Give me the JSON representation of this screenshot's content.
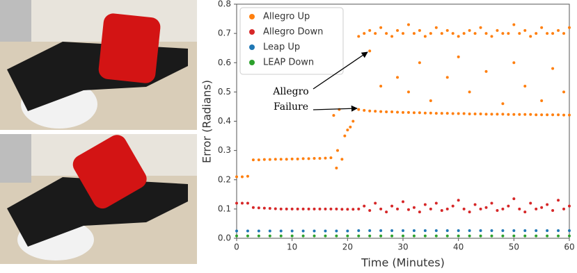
{
  "chart_data": {
    "type": "scatter",
    "xlabel": "Time (Minutes)",
    "ylabel": "Error (Radians)",
    "annotation": [
      "Allegro",
      "Failure"
    ],
    "xlim": [
      0,
      60
    ],
    "ylim": [
      0,
      0.8
    ],
    "xticks": [
      0,
      10,
      20,
      30,
      40,
      50,
      60
    ],
    "yticks": [
      {
        "value": 0,
        "label": "0.0"
      },
      0.1,
      0.2,
      0.3,
      0.4,
      0.5,
      0.6,
      0.7,
      0.8
    ],
    "legend": "upper-left",
    "series": [
      {
        "name": "Allegro Up",
        "color": "#ff7f0e",
        "x": [
          0,
          1,
          2,
          3,
          4,
          5,
          6,
          7,
          8,
          9,
          10,
          11,
          12,
          13,
          14,
          15,
          16,
          17,
          18,
          19,
          20,
          21,
          22,
          23,
          24,
          25,
          26,
          27,
          28,
          29,
          30,
          31,
          32,
          33,
          34,
          35,
          36,
          37,
          38,
          39,
          40,
          41,
          42,
          43,
          44,
          45,
          46,
          47,
          48,
          49,
          50,
          51,
          52,
          53,
          54,
          55,
          56,
          57,
          58,
          59,
          60,
          17.5,
          18.2,
          18.5,
          19.5,
          20.5,
          22,
          23,
          24,
          25,
          26,
          27,
          28,
          29,
          30,
          31,
          32,
          33,
          34,
          35,
          36,
          37,
          38,
          39,
          40,
          41,
          42,
          43,
          44,
          45,
          46,
          47,
          48,
          49,
          50,
          51,
          52,
          53,
          54,
          55,
          56,
          57,
          58,
          59,
          60,
          24,
          26,
          29,
          31,
          33,
          35,
          38,
          40,
          42,
          45,
          48,
          50,
          52,
          55,
          57,
          59
        ],
        "values": [
          0.21,
          0.21,
          0.212,
          0.268,
          0.268,
          0.269,
          0.269,
          0.27,
          0.27,
          0.27,
          0.271,
          0.271,
          0.272,
          0.272,
          0.273,
          0.273,
          0.274,
          0.275,
          0.24,
          0.27,
          0.37,
          0.4,
          0.44,
          0.437,
          0.435,
          0.434,
          0.433,
          0.432,
          0.432,
          0.431,
          0.43,
          0.43,
          0.429,
          0.429,
          0.428,
          0.428,
          0.427,
          0.427,
          0.427,
          0.426,
          0.426,
          0.426,
          0.425,
          0.425,
          0.425,
          0.424,
          0.424,
          0.424,
          0.424,
          0.423,
          0.423,
          0.423,
          0.423,
          0.423,
          0.422,
          0.422,
          0.422,
          0.422,
          0.422,
          0.421,
          0.421,
          0.42,
          0.3,
          0.44,
          0.35,
          0.38,
          0.69,
          0.7,
          0.71,
          0.7,
          0.72,
          0.7,
          0.69,
          0.71,
          0.7,
          0.73,
          0.7,
          0.71,
          0.69,
          0.7,
          0.72,
          0.7,
          0.71,
          0.7,
          0.69,
          0.7,
          0.71,
          0.7,
          0.72,
          0.7,
          0.69,
          0.71,
          0.7,
          0.7,
          0.73,
          0.7,
          0.71,
          0.69,
          0.7,
          0.72,
          0.7,
          0.7,
          0.71,
          0.7,
          0.72,
          0.64,
          0.52,
          0.55,
          0.5,
          0.6,
          0.47,
          0.55,
          0.62,
          0.5,
          0.57,
          0.46,
          0.6,
          0.52,
          0.47,
          0.58,
          0.5
        ]
      },
      {
        "name": "Allegro Down",
        "color": "#d62728",
        "x": [
          0,
          1,
          2,
          3,
          4,
          5,
          6,
          7,
          8,
          9,
          10,
          11,
          12,
          13,
          14,
          15,
          16,
          17,
          18,
          19,
          20,
          21,
          22,
          23,
          24,
          25,
          26,
          27,
          28,
          29,
          30,
          31,
          32,
          33,
          34,
          35,
          36,
          37,
          38,
          39,
          40,
          41,
          42,
          43,
          44,
          45,
          46,
          47,
          48,
          49,
          50,
          51,
          52,
          53,
          54,
          55,
          56,
          57,
          58,
          59,
          60
        ],
        "values": [
          0.12,
          0.12,
          0.12,
          0.105,
          0.104,
          0.103,
          0.102,
          0.101,
          0.1,
          0.1,
          0.1,
          0.1,
          0.1,
          0.1,
          0.1,
          0.1,
          0.1,
          0.1,
          0.1,
          0.099,
          0.099,
          0.099,
          0.1,
          0.11,
          0.095,
          0.12,
          0.1,
          0.09,
          0.11,
          0.1,
          0.125,
          0.098,
          0.105,
          0.09,
          0.115,
          0.1,
          0.12,
          0.095,
          0.1,
          0.11,
          0.13,
          0.1,
          0.09,
          0.115,
          0.1,
          0.105,
          0.12,
          0.095,
          0.1,
          0.11,
          0.135,
          0.1,
          0.09,
          0.12,
          0.1,
          0.105,
          0.115,
          0.095,
          0.13,
          0.1,
          0.11
        ]
      },
      {
        "name": "Leap Up",
        "color": "#1f77b4",
        "x": [
          0,
          2,
          4,
          6,
          8,
          10,
          12,
          14,
          16,
          18,
          20,
          22,
          24,
          26,
          28,
          30,
          32,
          34,
          36,
          38,
          40,
          42,
          44,
          46,
          48,
          50,
          52,
          54,
          56,
          58,
          60
        ],
        "values": [
          0.025,
          0.025,
          0.025,
          0.025,
          0.025,
          0.025,
          0.025,
          0.025,
          0.025,
          0.025,
          0.025,
          0.026,
          0.026,
          0.026,
          0.026,
          0.026,
          0.026,
          0.026,
          0.026,
          0.026,
          0.026,
          0.026,
          0.026,
          0.026,
          0.026,
          0.026,
          0.026,
          0.026,
          0.026,
          0.026,
          0.026
        ]
      },
      {
        "name": "LEAP Down",
        "color": "#2ca02c",
        "x": [
          0,
          2,
          4,
          6,
          8,
          10,
          12,
          14,
          16,
          18,
          20,
          22,
          24,
          26,
          28,
          30,
          32,
          34,
          36,
          38,
          40,
          42,
          44,
          46,
          48,
          50,
          52,
          54,
          56,
          58,
          60
        ],
        "values": [
          0.008,
          0.008,
          0.008,
          0.008,
          0.008,
          0.008,
          0.008,
          0.008,
          0.008,
          0.008,
          0.008,
          0.008,
          0.008,
          0.008,
          0.008,
          0.008,
          0.008,
          0.008,
          0.008,
          0.008,
          0.008,
          0.008,
          0.008,
          0.008,
          0.008,
          0.008,
          0.008,
          0.008,
          0.008,
          0.008,
          0.008
        ]
      }
    ]
  }
}
